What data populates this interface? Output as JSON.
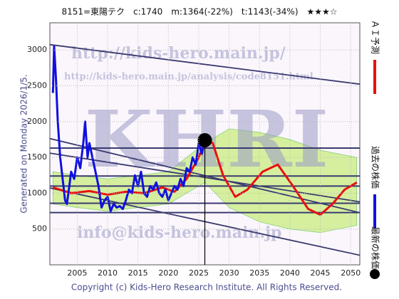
{
  "chart_data": {
    "type": "line",
    "title": "8151=東陽テク　c:1740　m:1364(-22%)　t:1143(-34%)　★★★☆",
    "left_label": "Generated on Monday 2026/1/5.",
    "footer": "Copyright (c) Kids-Hero Research Institute. All Rights Reserved.",
    "watermarks": [
      "http://kids-hero.main.jp/",
      "http://kids-hero.main.jp/analysis/code8151.html",
      "KHRI",
      "info@kids-hero.main.jp"
    ],
    "xlim": [
      2000.5,
      2051.5
    ],
    "xticks": [
      2005,
      2010,
      2015,
      2020,
      2025,
      2030,
      2035,
      2040,
      2045,
      2050
    ],
    "ylim": [
      0,
      3380
    ],
    "yticks": [
      500,
      1000,
      1500,
      2000,
      2500,
      3000
    ],
    "grid": true,
    "series": [
      {
        "name": "過去の株価",
        "color": "#1010e0",
        "x": [
          2001.0,
          2001.2,
          2001.5,
          2001.8,
          2002.2,
          2002.6,
          2003.0,
          2003.3,
          2003.7,
          2004.0,
          2004.5,
          2005.0,
          2005.5,
          2006.0,
          2006.3,
          2006.7,
          2007.0,
          2007.5,
          2008.0,
          2008.5,
          2009.0,
          2009.5,
          2010.0,
          2010.5,
          2011.0,
          2011.5,
          2012.0,
          2012.5,
          2013.0,
          2013.5,
          2014.0,
          2014.5,
          2015.0,
          2015.5,
          2016.0,
          2016.5,
          2017.0,
          2017.5,
          2018.0,
          2018.5,
          2019.0,
          2019.5,
          2020.0,
          2020.5,
          2021.0,
          2021.5,
          2022.0,
          2022.5,
          2023.0,
          2023.5,
          2024.0,
          2024.5,
          2025.0,
          2025.5,
          2026.0
        ],
        "values": [
          2400,
          3050,
          2600,
          2000,
          1500,
          1200,
          900,
          850,
          1100,
          1300,
          1200,
          1500,
          1350,
          1700,
          2000,
          1500,
          1700,
          1500,
          1300,
          1100,
          800,
          900,
          950,
          750,
          850,
          800,
          820,
          780,
          900,
          1050,
          1000,
          1250,
          1100,
          1300,
          1000,
          950,
          1100,
          1050,
          1150,
          1000,
          950,
          1050,
          900,
          1000,
          1100,
          1050,
          1200,
          1100,
          1350,
          1300,
          1500,
          1400,
          1700,
          1550,
          1740
        ]
      },
      {
        "name": "ＡＩ予測",
        "color": "#e81010",
        "x": [
          2001,
          2004,
          2007,
          2010,
          2013,
          2016,
          2019,
          2021,
          2023,
          2025,
          2026,
          2027.3,
          2029,
          2031,
          2033,
          2035.5,
          2038,
          2040.5,
          2043,
          2045,
          2047,
          2049,
          2051
        ],
        "values": [
          1080,
          1000,
          1030,
          980,
          1020,
          1000,
          1080,
          1020,
          1200,
          1500,
          1740,
          1700,
          1250,
          950,
          1050,
          1300,
          1400,
          1100,
          780,
          700,
          850,
          1050,
          1150
        ]
      },
      {
        "name": "最新の株価",
        "color": "#000000",
        "x": [
          2026
        ],
        "values": [
          1740
        ]
      }
    ],
    "band": {
      "color": "#ccee88",
      "x": [
        2001,
        2005,
        2010,
        2015,
        2020,
        2026,
        2030,
        2035,
        2040,
        2045,
        2051
      ],
      "upper": [
        1300,
        1250,
        1200,
        1250,
        1300,
        1700,
        1900,
        1850,
        1750,
        1600,
        1500
      ],
      "lower": [
        850,
        800,
        750,
        800,
        850,
        1150,
        800,
        600,
        500,
        450,
        550
      ]
    },
    "hlines": {
      "color": "#3a3a70",
      "values": [
        1630,
        1240,
        1100,
        860,
        730
      ]
    },
    "trendlines": {
      "color": "#3a3a70",
      "x": [
        2000.5,
        2051.5
      ],
      "lines": [
        [
          3075,
          2523
        ],
        [
          1763,
          728
        ],
        [
          1560,
          880
        ],
        [
          1073,
          134
        ]
      ]
    }
  }
}
